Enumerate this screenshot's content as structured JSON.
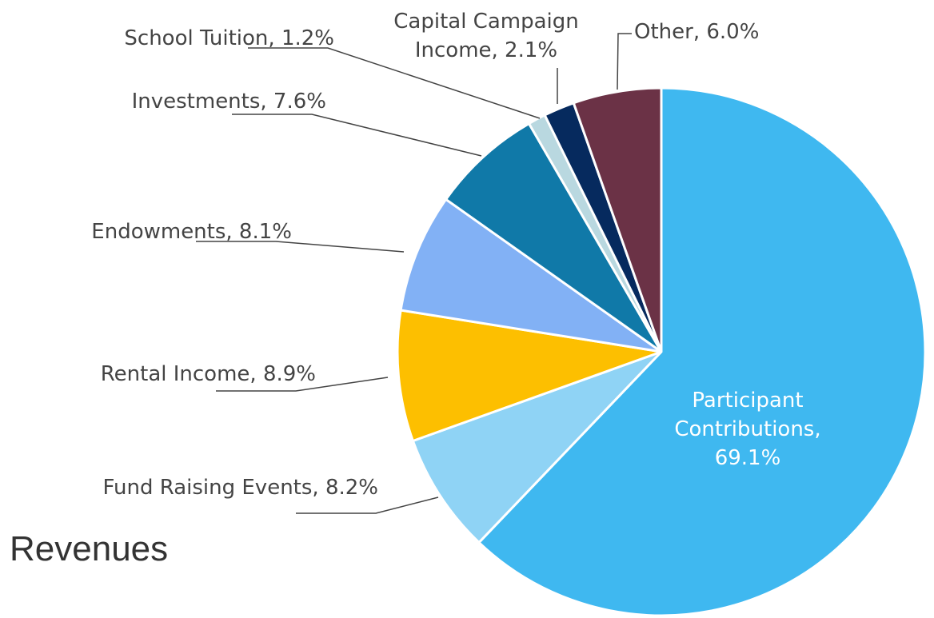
{
  "chart_data": {
    "type": "pie",
    "title": "Revenues",
    "values": [
      69.1,
      8.2,
      8.9,
      8.1,
      7.6,
      1.2,
      2.1,
      6.0
    ],
    "value_labels": [
      "Participant Contributions, 69.1%",
      "Fund Raising Events, 8.2%",
      "Rental Income, 8.9%",
      "Endowments, 8.1%",
      "Investments, 7.6%",
      "School Tuition, 1.2%",
      "Capital Campaign Income, 2.1%",
      "Other, 6.0%"
    ],
    "colors": [
      "#3fb8f0",
      "#8fd3f5",
      "#fdbf00",
      "#82b1f5",
      "#1079a8",
      "#b9d8e0",
      "#062a5e",
      "#6b3246"
    ]
  }
}
